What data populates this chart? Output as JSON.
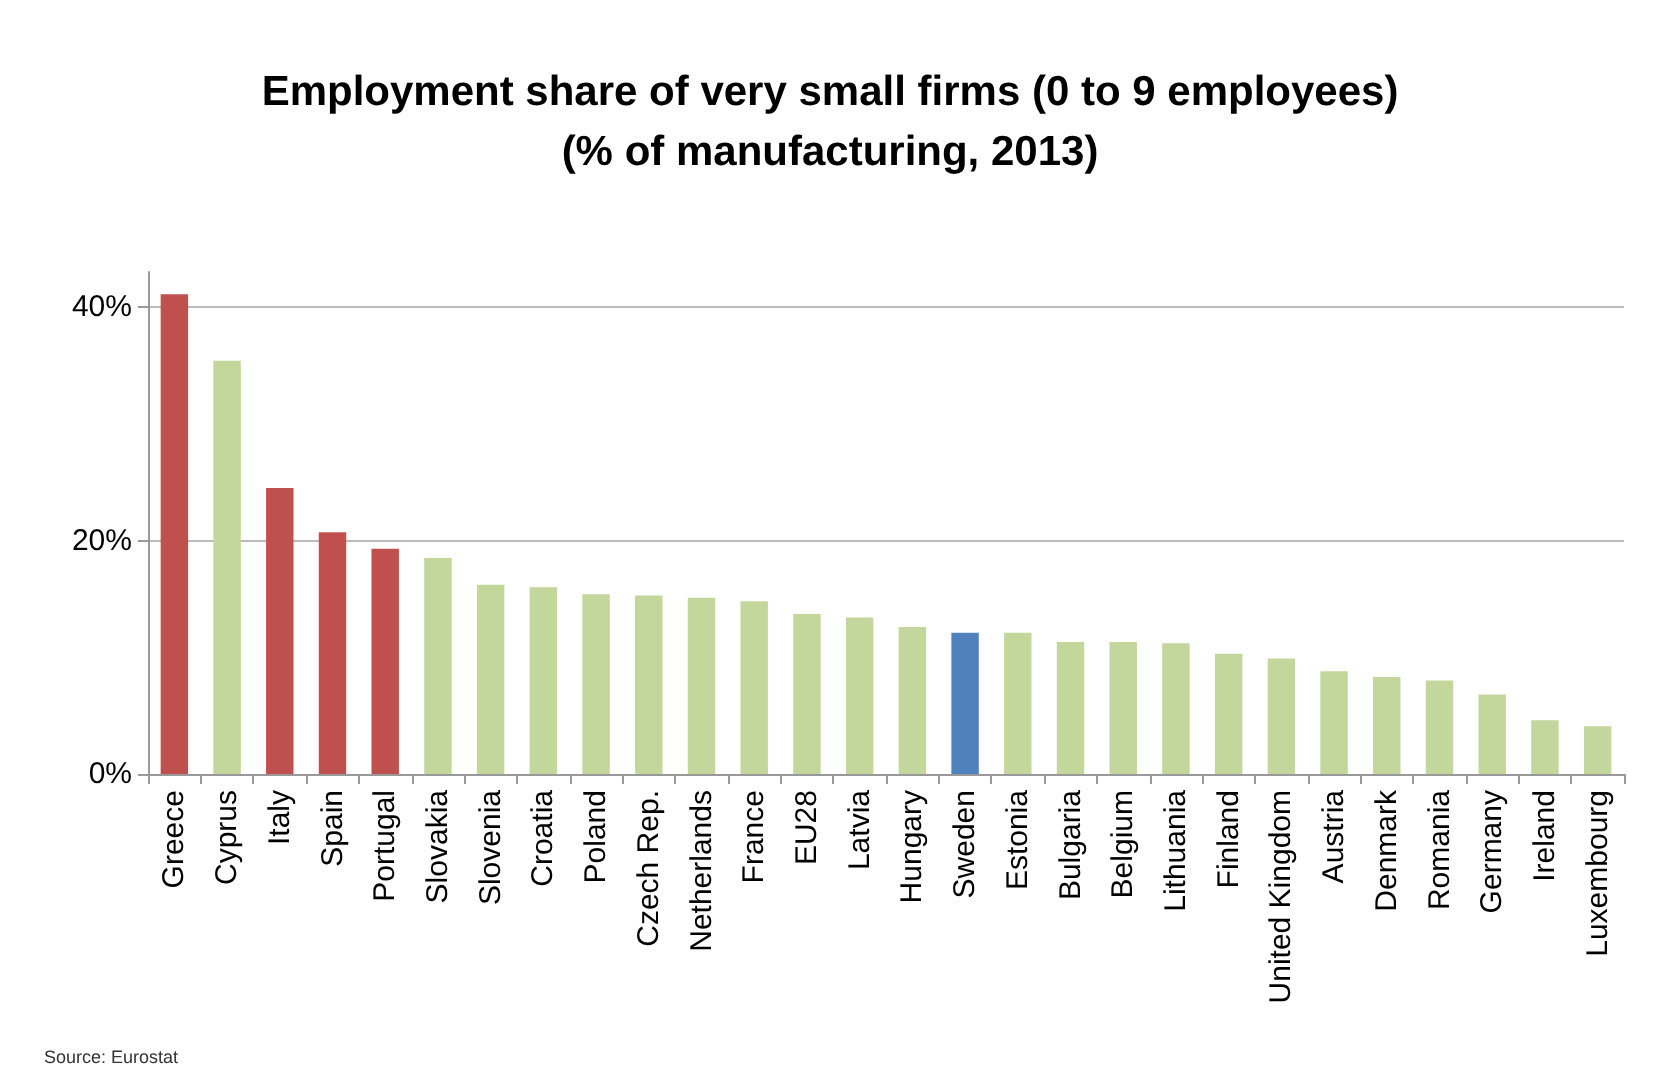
{
  "chart_data": {
    "type": "bar",
    "title": "Employment share of very small firms (0 to 9 employees)\n(% of manufacturing, 2013)",
    "categories": [
      "Greece",
      "Cyprus",
      "Italy",
      "Spain",
      "Portugal",
      "Slovakia",
      "Slovenia",
      "Croatia",
      "Poland",
      "Czech Rep.",
      "Netherlands",
      "France",
      "EU28",
      "Latvia",
      "Hungary",
      "Sweden",
      "Estonia",
      "Bulgaria",
      "Belgium",
      "Lithuania",
      "Finland",
      "United Kingdom",
      "Austria",
      "Denmark",
      "Romania",
      "Germany",
      "Ireland",
      "Luxembourg"
    ],
    "values": [
      41.1,
      35.4,
      24.5,
      20.7,
      19.3,
      18.5,
      16.2,
      16.0,
      15.4,
      15.3,
      15.1,
      14.8,
      13.7,
      13.4,
      12.6,
      12.1,
      12.1,
      11.3,
      11.3,
      11.2,
      10.3,
      9.9,
      8.8,
      8.3,
      8.0,
      6.8,
      4.6,
      4.1
    ],
    "colors": [
      "#c0504d",
      "#c3d69b",
      "#c0504d",
      "#c0504d",
      "#c0504d",
      "#c3d69b",
      "#c3d69b",
      "#c3d69b",
      "#c3d69b",
      "#c3d69b",
      "#c3d69b",
      "#c3d69b",
      "#c3d69b",
      "#c3d69b",
      "#c3d69b",
      "#4f81bd",
      "#c3d69b",
      "#c3d69b",
      "#c3d69b",
      "#c3d69b",
      "#c3d69b",
      "#c3d69b",
      "#c3d69b",
      "#c3d69b",
      "#c3d69b",
      "#c3d69b",
      "#c3d69b",
      "#c3d69b"
    ],
    "ylim": [
      0,
      43
    ],
    "yticks": [
      {
        "value": 0,
        "label": "0%"
      },
      {
        "value": 20,
        "label": "20%"
      },
      {
        "value": 40,
        "label": "40%"
      }
    ],
    "grid": "y",
    "annotations": [
      "Source: Eurostat"
    ]
  }
}
